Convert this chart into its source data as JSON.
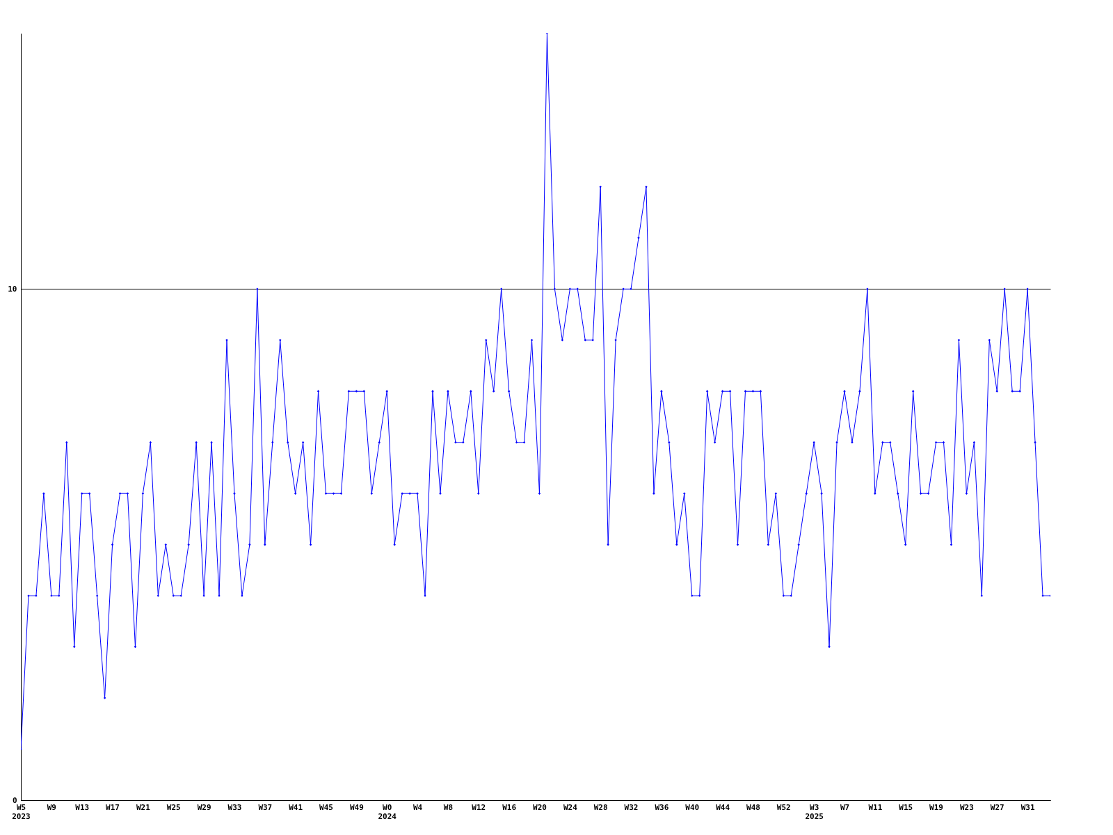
{
  "chart_data": {
    "type": "line",
    "categories": [
      "W5\n2023",
      null,
      null,
      null,
      "W9",
      null,
      null,
      null,
      "W13",
      null,
      null,
      null,
      "W17",
      null,
      null,
      null,
      "W21",
      null,
      null,
      null,
      "W25",
      null,
      null,
      null,
      "W29",
      null,
      null,
      null,
      "W33",
      null,
      null,
      null,
      "W37",
      null,
      null,
      null,
      "W41",
      null,
      null,
      null,
      "W45",
      null,
      null,
      null,
      "W49",
      null,
      null,
      null,
      "W0\n2024",
      null,
      null,
      null,
      "W4",
      null,
      null,
      null,
      "W8",
      null,
      null,
      null,
      "W12",
      null,
      null,
      null,
      "W16",
      null,
      null,
      null,
      "W20",
      null,
      null,
      null,
      "W24",
      null,
      null,
      null,
      "W28",
      null,
      null,
      null,
      "W32",
      null,
      null,
      null,
      "W36",
      null,
      null,
      null,
      "W40",
      null,
      null,
      null,
      "W44",
      null,
      null,
      null,
      "W48",
      null,
      null,
      null,
      "W52",
      null,
      null,
      null,
      "W3\n2025",
      null,
      null,
      null,
      "W7",
      null,
      null,
      null,
      "W11",
      null,
      null,
      null,
      "W15",
      null,
      null,
      null,
      "W19",
      null,
      null,
      null,
      "W23",
      null,
      null,
      null,
      "W27",
      null,
      null,
      null,
      "W31",
      null,
      null,
      null
    ],
    "series": [
      {
        "color": "#0000ff",
        "values": [
          1,
          4,
          4,
          6,
          4,
          4,
          7,
          3,
          6,
          6,
          4,
          2,
          5,
          6,
          6,
          3,
          6,
          7,
          4,
          5,
          4,
          4,
          5,
          7,
          4,
          7,
          4,
          9,
          6,
          4,
          5,
          10,
          5,
          7,
          9,
          7,
          6,
          7,
          5,
          8,
          6,
          6,
          6,
          8,
          8,
          8,
          6,
          7,
          8,
          5,
          6,
          6,
          6,
          4,
          8,
          6,
          8,
          7,
          7,
          8,
          6,
          9,
          8,
          10,
          8,
          7,
          7,
          9,
          6,
          15,
          10,
          9,
          10,
          10,
          9,
          9,
          12,
          5,
          9,
          10,
          10,
          11,
          12,
          6,
          8,
          7,
          5,
          6,
          4,
          4,
          8,
          7,
          8,
          8,
          5,
          8,
          8,
          8,
          5,
          6,
          4,
          4,
          5,
          6,
          7,
          6,
          3,
          7,
          8,
          7,
          8,
          10,
          6,
          7,
          7,
          6,
          5,
          8,
          6,
          6,
          7,
          7,
          5,
          9,
          6,
          7,
          4,
          9,
          8,
          10,
          8,
          8,
          10,
          7,
          4,
          4
        ]
      }
    ],
    "ylim": [
      0,
      15
    ],
    "yticks": [
      0,
      10
    ],
    "grid": "y",
    "marker": "diamond",
    "line_style": "solid"
  }
}
